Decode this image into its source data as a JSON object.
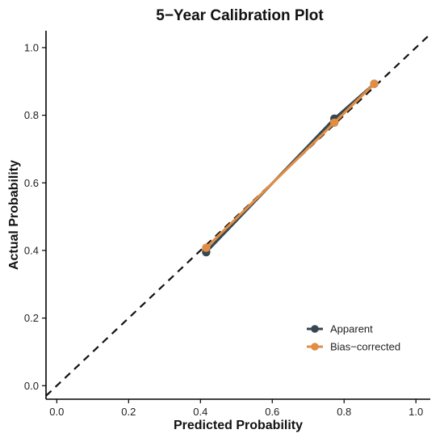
{
  "chart_data": {
    "type": "line",
    "title": "5−Year Calibration Plot",
    "xlabel": "Predicted Probability",
    "ylabel": "Actual Probability",
    "xlim": [
      -0.03,
      1.04
    ],
    "ylim": [
      -0.04,
      1.05
    ],
    "xticks": [
      0.0,
      0.2,
      0.4,
      0.6,
      0.8,
      1.0
    ],
    "xtick_labels": [
      "0.0",
      "0.2",
      "0.4",
      "0.6",
      "0.8",
      "1.0"
    ],
    "yticks": [
      0.0,
      0.2,
      0.4,
      0.6,
      0.8,
      1.0
    ],
    "ytick_labels": [
      "0.0",
      "0.2",
      "0.4",
      "0.6",
      "0.8",
      "1.0"
    ],
    "grid": false,
    "legend_position": "bottom-right",
    "reference_line": {
      "style": "dashed",
      "color": "#111111",
      "from": [
        0,
        0
      ],
      "to": [
        1,
        1
      ]
    },
    "series": [
      {
        "name": "Apparent",
        "color": "#37474F",
        "x": [
          0.416,
          0.773,
          0.884
        ],
        "y": [
          0.395,
          0.79,
          0.893
        ]
      },
      {
        "name": "Bias−corrected",
        "color": "#E08E45",
        "x": [
          0.416,
          0.773,
          0.884
        ],
        "y": [
          0.408,
          0.778,
          0.893
        ]
      }
    ]
  }
}
